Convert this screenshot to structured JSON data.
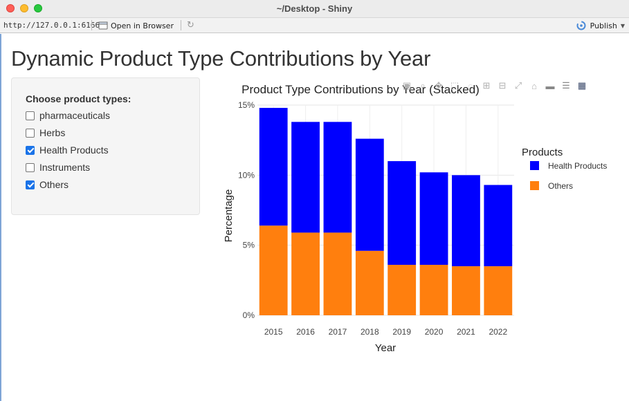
{
  "window": {
    "title": "~/Desktop - Shiny"
  },
  "toolbar": {
    "url": "http://127.0.0.1:6166",
    "open_browser_label": "Open in Browser",
    "publish_label": "Publish"
  },
  "page": {
    "heading": "Dynamic Product Type Contributions by Year"
  },
  "sidebar": {
    "label": "Choose product types:",
    "options": [
      {
        "label": "pharmaceuticals",
        "checked": false
      },
      {
        "label": "Herbs",
        "checked": false
      },
      {
        "label": "Health Products",
        "checked": true
      },
      {
        "label": "Instruments",
        "checked": false
      },
      {
        "label": "Others",
        "checked": true
      }
    ]
  },
  "modebar": {
    "icons": [
      "camera-icon",
      "zoom-icon",
      "pan-icon",
      "box-select-icon",
      "lasso-icon",
      "zoom-in-icon",
      "zoom-out-icon",
      "autoscale-icon",
      "reset-axes-icon",
      "spike-lines-icon",
      "compare-hover-icon",
      "plotly-logo-icon"
    ]
  },
  "chart_data": {
    "type": "bar",
    "stacked": true,
    "title": "Product Type Contributions by Year (Stacked)",
    "xlabel": "Year",
    "ylabel": "Percentage",
    "categories": [
      "2015",
      "2016",
      "2017",
      "2018",
      "2019",
      "2020",
      "2021",
      "2022"
    ],
    "ylim": [
      0,
      15
    ],
    "yticks": [
      "0%",
      "5%",
      "10%",
      "15%"
    ],
    "legend_title": "Products",
    "legend_position": "top-right",
    "grid": true,
    "series": [
      {
        "name": "Others",
        "color": "#ff7f0e",
        "values": [
          6.4,
          5.9,
          5.9,
          4.6,
          3.6,
          3.6,
          3.5,
          3.5
        ]
      },
      {
        "name": "Health Products",
        "color": "#0000ff",
        "values": [
          8.4,
          7.9,
          7.9,
          8.0,
          7.4,
          6.6,
          6.5,
          5.8
        ]
      }
    ]
  }
}
